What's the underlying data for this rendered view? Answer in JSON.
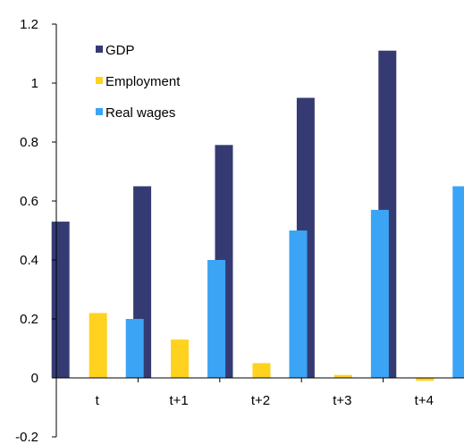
{
  "chart_data": {
    "type": "bar",
    "categories": [
      "t",
      "t+1",
      "t+2",
      "t+3",
      "t+4"
    ],
    "series": [
      {
        "name": "GDP",
        "color": "#353b72",
        "values": [
          0.53,
          0.65,
          0.79,
          0.95,
          1.11
        ]
      },
      {
        "name": "Employment",
        "color": "#ffd21f",
        "values": [
          0.22,
          0.13,
          0.05,
          0.01,
          -0.01
        ]
      },
      {
        "name": "Real wages",
        "color": "#3ba4f5",
        "values": [
          0.2,
          0.4,
          0.5,
          0.57,
          0.65
        ]
      }
    ],
    "ylim": [
      -0.2,
      1.2
    ],
    "yticks": [
      "-0.2",
      "0",
      "0.2",
      "0.4",
      "0.6",
      "0.8",
      "1",
      "1.2"
    ],
    "grid": false,
    "legend_position": "top-left"
  }
}
